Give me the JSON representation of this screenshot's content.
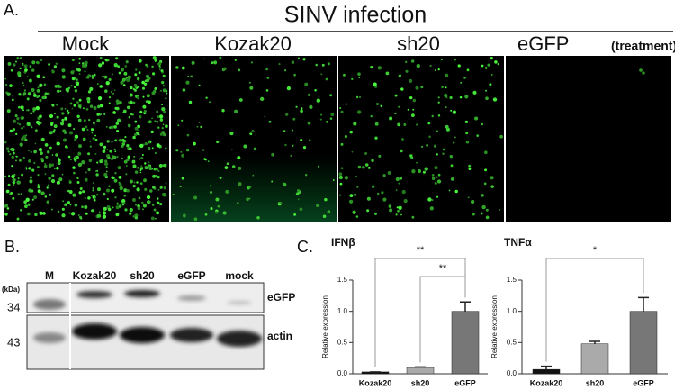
{
  "panel_a": {
    "label": "A.",
    "title": "SINV infection",
    "columns": [
      "Mock",
      "Kozak20",
      "sh20",
      "eGFP"
    ],
    "note": "(treatment)"
  },
  "panel_b": {
    "label": "B.",
    "unit": "(kDa)",
    "lanes": [
      "M",
      "Kozak20",
      "sh20",
      "eGFP",
      "mock"
    ],
    "markers": [
      "34",
      "43"
    ],
    "bands": [
      "eGFP",
      "actin"
    ]
  },
  "panel_c": {
    "label": "C."
  },
  "chart_data": [
    {
      "type": "bar",
      "title": "IFNβ",
      "y_label": "Relative expression",
      "categories": [
        "Kozak20",
        "sh20",
        "eGFP"
      ],
      "values": [
        0.03,
        0.1,
        1.0
      ],
      "errors": [
        0.0,
        0.01,
        0.15
      ],
      "colors": [
        "#111111",
        "#aaaaaa",
        "#777777"
      ],
      "ylim": [
        0,
        1.5
      ],
      "yticks": [
        {
          "value": 0,
          "label": "0.0"
        },
        0.5,
        {
          "value": 1,
          "label": "1.0"
        },
        1.5
      ],
      "annotations": [
        {
          "text": "**",
          "between": [
            "Kozak20",
            "eGFP"
          ]
        },
        {
          "text": "**",
          "between": [
            "sh20",
            "eGFP"
          ]
        }
      ]
    },
    {
      "type": "bar",
      "title": "TNFα",
      "y_label": "Relative expression",
      "categories": [
        "Kozak20",
        "sh20",
        "eGFP"
      ],
      "values": [
        0.07,
        0.48,
        1.0
      ],
      "errors": [
        0.05,
        0.04,
        0.22
      ],
      "colors": [
        "#111111",
        "#aaaaaa",
        "#777777"
      ],
      "ylim": [
        0,
        1.5
      ],
      "yticks": [
        {
          "value": 0,
          "label": "0.0"
        },
        0.5,
        {
          "value": 1,
          "label": "1.0"
        },
        1.5
      ],
      "annotations": [
        {
          "text": "*",
          "between": [
            "Kozak20",
            "eGFP"
          ]
        }
      ]
    }
  ]
}
